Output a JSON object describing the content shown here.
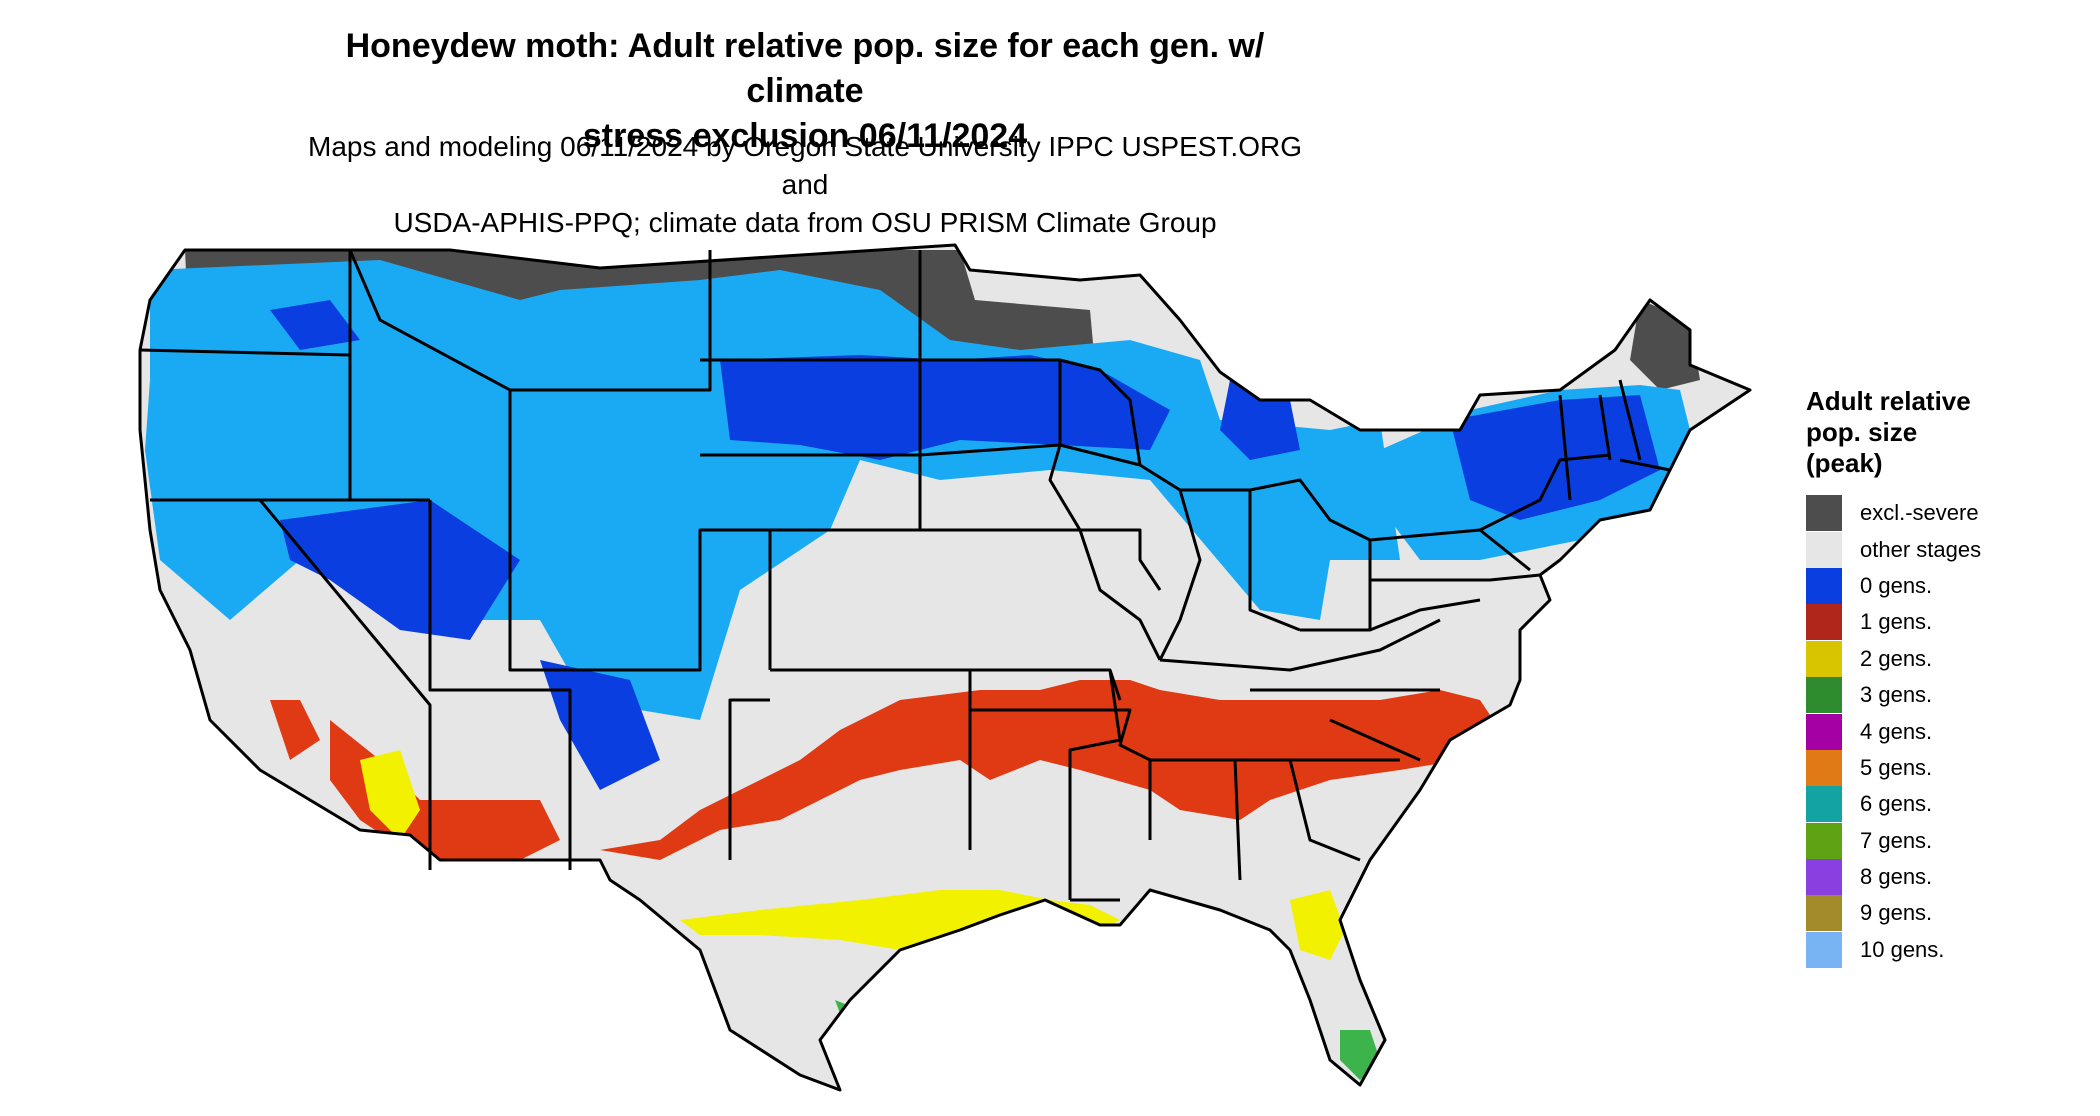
{
  "title_line1": "Honeydew moth: Adult relative pop. size for each gen. w/ climate",
  "title_line2": "stress exclusion 06/11/2024",
  "subtitle_line1": "Maps and modeling 06/11/2024 by Oregon State University IPPC USPEST.ORG and",
  "subtitle_line2": "USDA-APHIS-PPQ; climate data from OSU PRISM Climate Group",
  "legend": {
    "title_line1": "Adult relative",
    "title_line2": "pop. size",
    "title_line3": "(peak)",
    "items": [
      {
        "label": "excl.-severe",
        "color": "#4d4d4d"
      },
      {
        "label": "other stages",
        "color": "#e6e6e6"
      },
      {
        "label": "0 gens.",
        "color": "#0a3ee0"
      },
      {
        "label": "1 gens.",
        "color": "#b0261a"
      },
      {
        "label": "2 gens.",
        "color": "#d9c400"
      },
      {
        "label": "3 gens.",
        "color": "#2e8b2e"
      },
      {
        "label": "4 gens.",
        "color": "#a400a4"
      },
      {
        "label": "5 gens.",
        "color": "#e07a14"
      },
      {
        "label": "6 gens.",
        "color": "#14a3a3"
      },
      {
        "label": "7 gens.",
        "color": "#5ea314"
      },
      {
        "label": "8 gens.",
        "color": "#8a3fe0"
      },
      {
        "label": "9 gens.",
        "color": "#a38a2a"
      },
      {
        "label": "10 gens.",
        "color": "#78b4f4"
      }
    ]
  },
  "map_colors": {
    "base": "#e6e6e6",
    "excluded": "#4d4d4d",
    "zero_gens_dark": "#0a3ee0",
    "zero_gens_light": "#1aaaf4",
    "one_gen": "#e03a14",
    "two_gens": "#f2f200",
    "three_gens": "#3cb44b",
    "border": "#000000"
  }
}
